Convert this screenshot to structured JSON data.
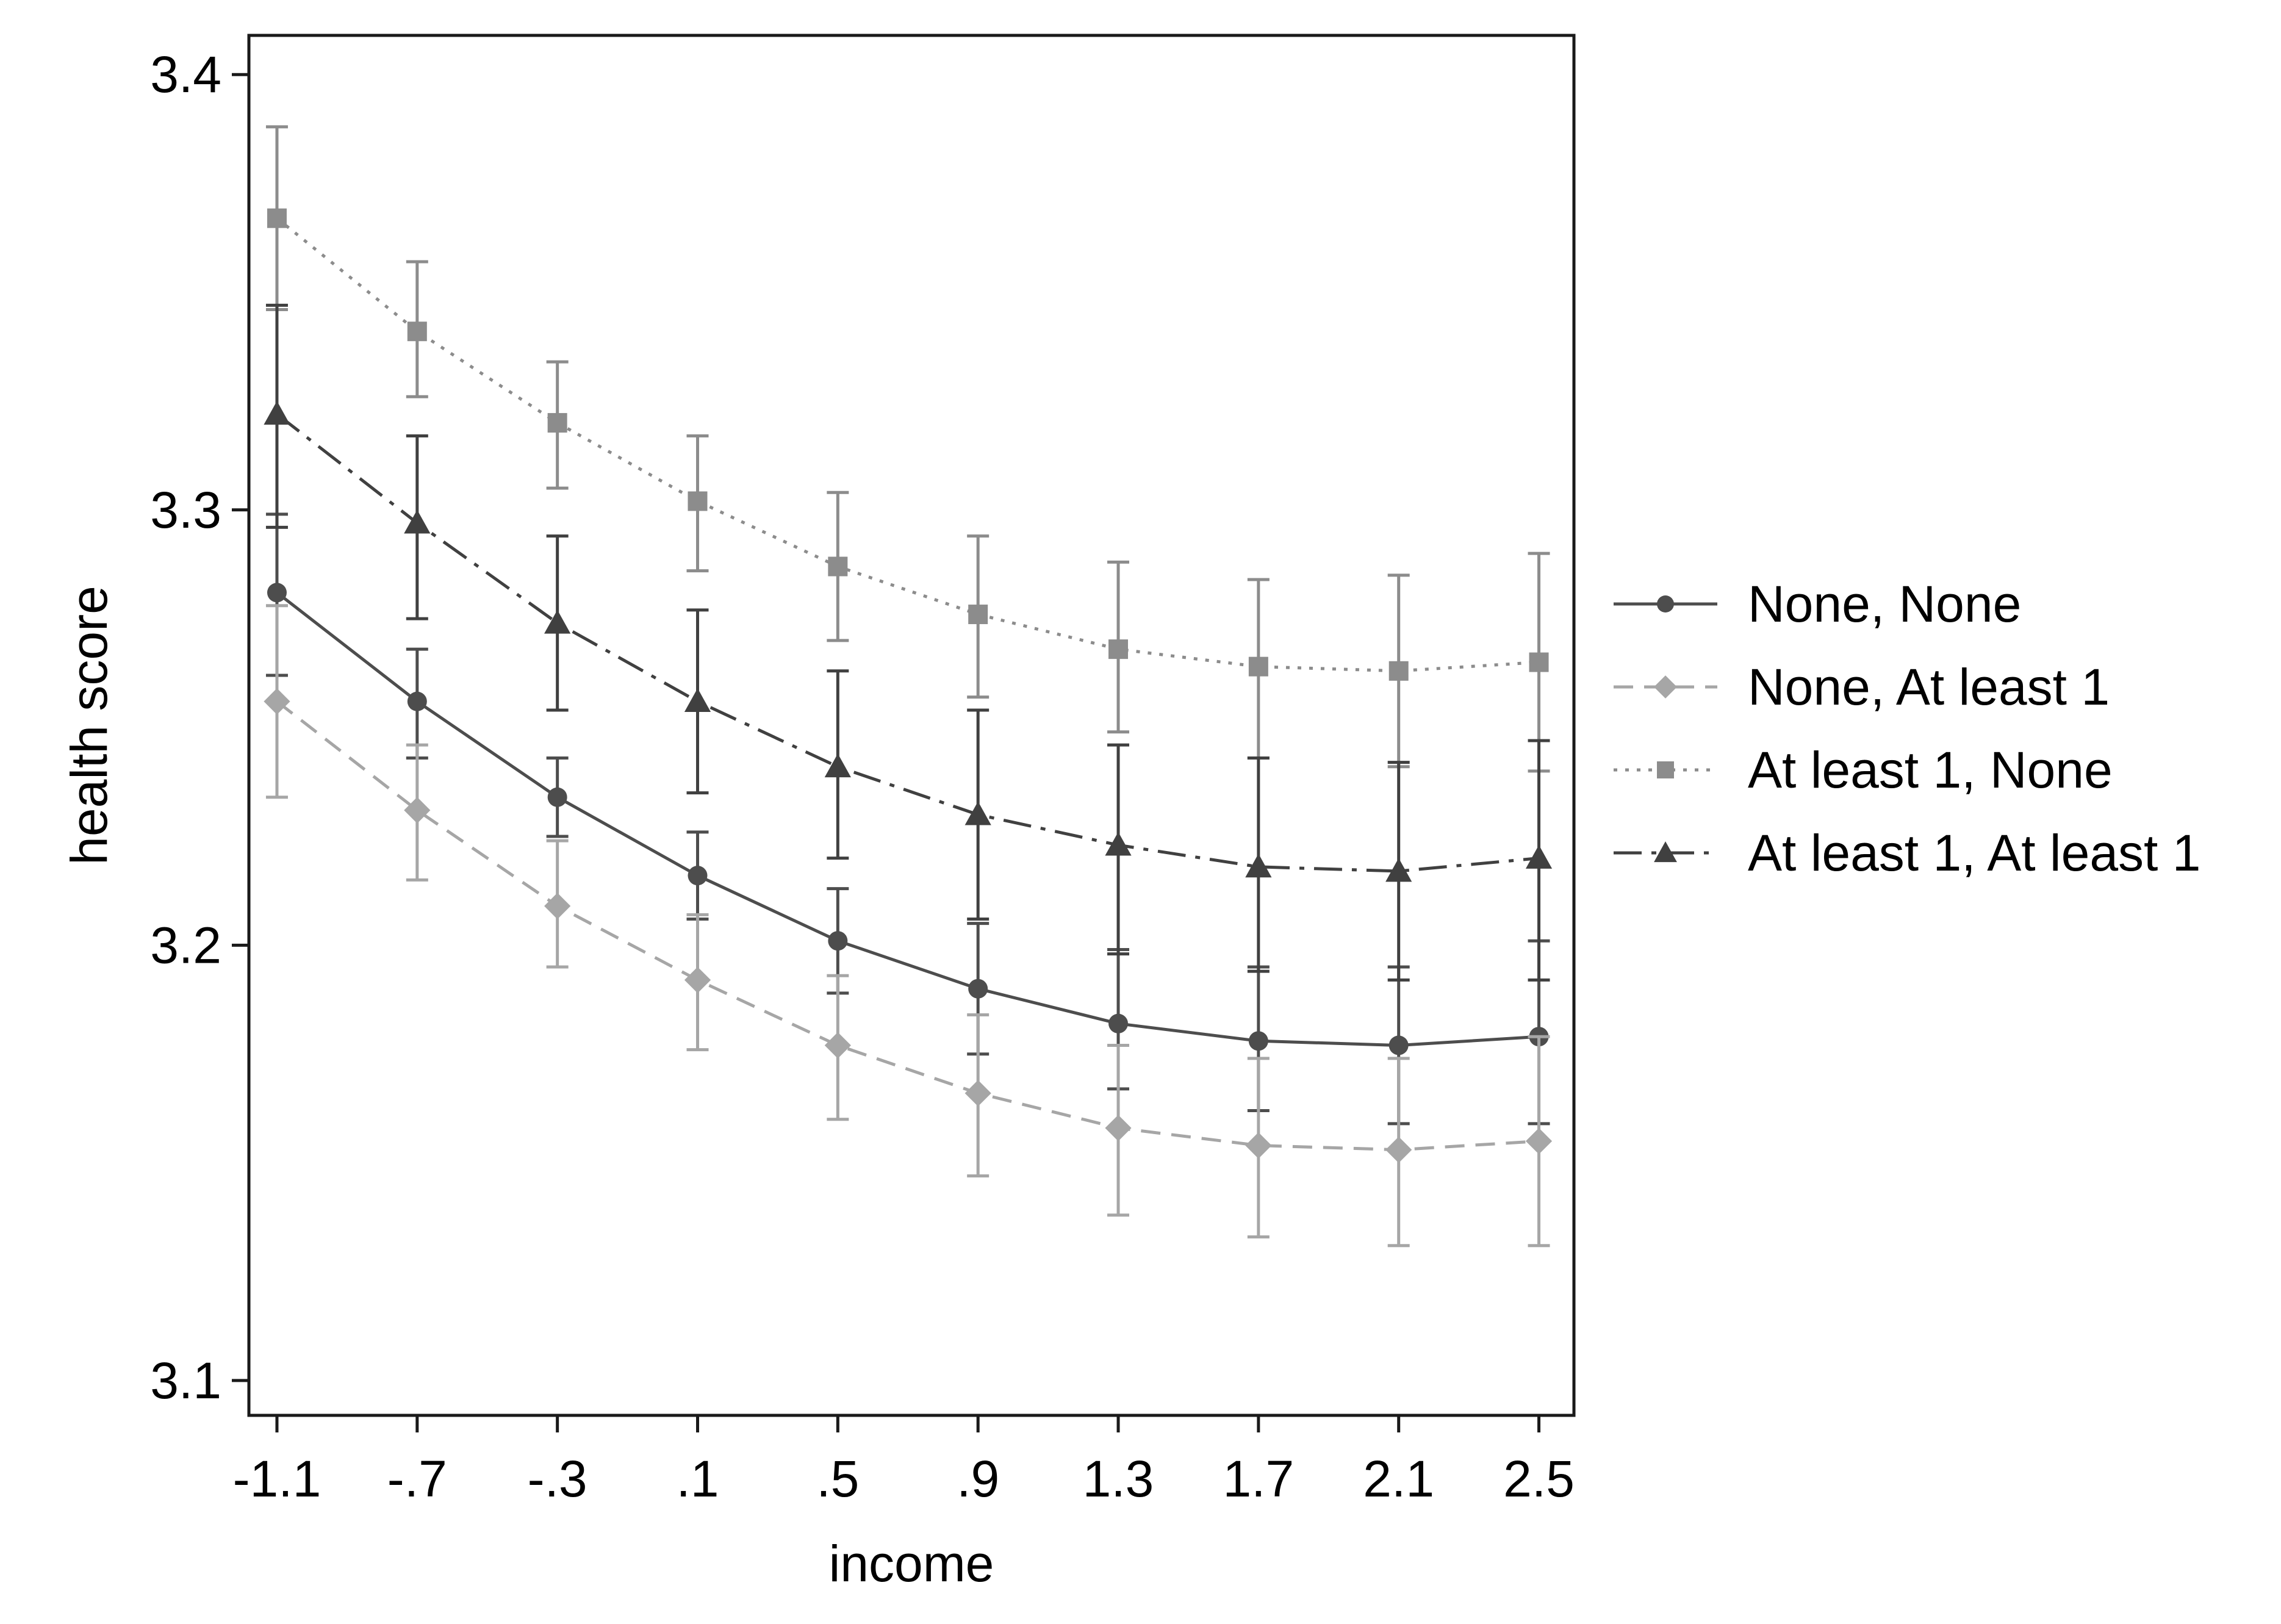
{
  "chart_data": {
    "type": "line",
    "title": "",
    "xlabel": "income",
    "ylabel": "health score",
    "x": [
      -1.1,
      -0.7,
      -0.3,
      0.1,
      0.5,
      0.9,
      1.3,
      1.7,
      2.1,
      2.5
    ],
    "x_tick_labels": [
      "-1.1",
      "-.7",
      "-.3",
      ".1",
      ".5",
      ".9",
      "1.3",
      "1.7",
      "2.1",
      "2.5"
    ],
    "y_ticks": [
      3.1,
      3.2,
      3.3,
      3.4
    ],
    "y_tick_labels": [
      "3.1",
      "3.2",
      "3.3",
      "3.4"
    ],
    "xlim": [
      -1.18,
      2.6
    ],
    "ylim": [
      3.092,
      3.409
    ],
    "grid": false,
    "legend_position": "right",
    "error_bars": true,
    "series": [
      {
        "name": "None, None",
        "color": "#4d4d4d",
        "line_style": "solid",
        "marker": "circle",
        "values": [
          3.281,
          3.256,
          3.234,
          3.216,
          3.201,
          3.19,
          3.182,
          3.178,
          3.177,
          3.179
        ],
        "lower": [
          3.262,
          3.243,
          3.225,
          3.206,
          3.189,
          3.175,
          3.167,
          3.162,
          3.159,
          3.159
        ],
        "upper": [
          3.299,
          3.268,
          3.243,
          3.226,
          3.213,
          3.205,
          3.199,
          3.195,
          3.195,
          3.201
        ]
      },
      {
        "name": "None, At least 1",
        "color": "#a6a6a6",
        "line_style": "dashed",
        "marker": "diamond",
        "values": [
          3.256,
          3.231,
          3.209,
          3.192,
          3.177,
          3.166,
          3.158,
          3.154,
          3.153,
          3.155
        ],
        "lower": [
          3.234,
          3.215,
          3.195,
          3.176,
          3.16,
          3.147,
          3.138,
          3.133,
          3.131,
          3.131
        ],
        "upper": [
          3.278,
          3.246,
          3.224,
          3.207,
          3.193,
          3.184,
          3.177,
          3.174,
          3.174,
          3.179
        ]
      },
      {
        "name": "At least 1, None",
        "color": "#8c8c8c",
        "line_style": "dotted",
        "marker": "square",
        "values": [
          3.367,
          3.341,
          3.32,
          3.302,
          3.287,
          3.276,
          3.268,
          3.264,
          3.263,
          3.265
        ],
        "lower": [
          3.346,
          3.326,
          3.305,
          3.286,
          3.27,
          3.257,
          3.249,
          3.243,
          3.241,
          3.24
        ],
        "upper": [
          3.388,
          3.357,
          3.334,
          3.317,
          3.304,
          3.294,
          3.288,
          3.284,
          3.285,
          3.29
        ]
      },
      {
        "name": "At least 1, At least 1",
        "color": "#404040",
        "line_style": "dashdot",
        "marker": "triangle",
        "values": [
          3.322,
          3.297,
          3.274,
          3.256,
          3.241,
          3.23,
          3.223,
          3.218,
          3.217,
          3.22
        ],
        "lower": [
          3.296,
          3.275,
          3.254,
          3.235,
          3.22,
          3.206,
          3.198,
          3.194,
          3.192,
          3.192
        ],
        "upper": [
          3.347,
          3.317,
          3.294,
          3.277,
          3.263,
          3.254,
          3.246,
          3.243,
          3.242,
          3.247
        ]
      }
    ]
  }
}
